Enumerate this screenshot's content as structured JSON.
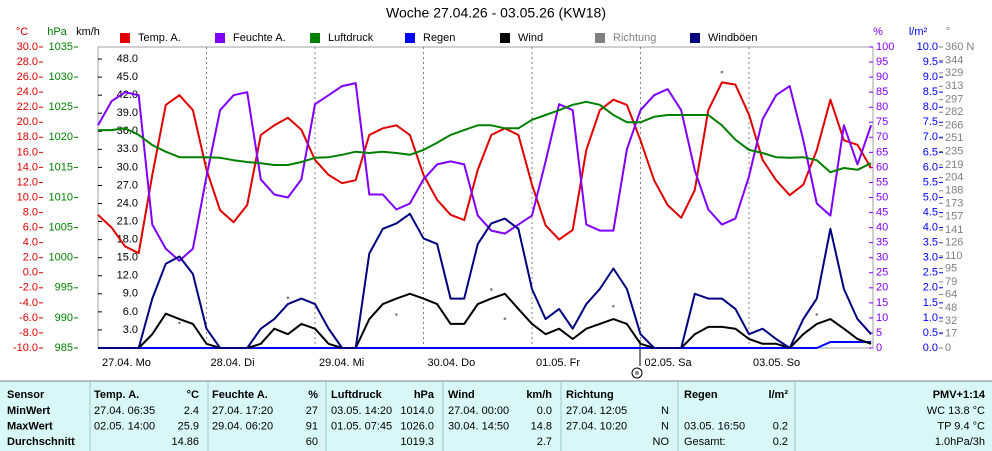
{
  "chart_data": {
    "type": "line",
    "title": "Woche 27.04.26 - 03.05.26 (KW18)",
    "categories": [
      "27.04. Mo",
      null,
      null,
      null,
      null,
      null,
      null,
      null,
      "28.04. Di",
      null,
      null,
      null,
      null,
      null,
      null,
      null,
      "29.04. Mi",
      null,
      null,
      null,
      null,
      null,
      null,
      null,
      "30.04. Do",
      null,
      null,
      null,
      null,
      null,
      null,
      null,
      "01.05. Fr",
      null,
      null,
      null,
      null,
      null,
      null,
      null,
      "02.05. Sa",
      null,
      null,
      null,
      null,
      null,
      null,
      null,
      "03.05. So",
      null,
      null,
      null,
      null,
      null,
      null,
      null,
      null,
      null
    ],
    "grid": true,
    "axes": [
      {
        "unit": "°C",
        "color": "#e00000",
        "lim": [
          -10,
          30
        ],
        "ticks": [
          {
            "value": -10,
            "label": "-10.0"
          },
          {
            "value": -8,
            "label": "-8.0"
          },
          {
            "value": -6,
            "label": "-6.0"
          },
          {
            "value": -4,
            "label": "-4.0"
          },
          {
            "value": -2,
            "label": "-2.0"
          },
          {
            "value": 0,
            "label": "0.0"
          },
          {
            "value": 2,
            "label": "2.0"
          },
          {
            "value": 4,
            "label": "4.0"
          },
          {
            "value": 6,
            "label": "6.0"
          },
          {
            "value": 8,
            "label": "8.0"
          },
          {
            "value": 10,
            "label": "10.0"
          },
          {
            "value": 12,
            "label": "12.0"
          },
          {
            "value": 14,
            "label": "14.0"
          },
          {
            "value": 16,
            "label": "16.0"
          },
          {
            "value": 18,
            "label": "18.0"
          },
          {
            "value": 20,
            "label": "20.0"
          },
          {
            "value": 22,
            "label": "22.0"
          },
          {
            "value": 24,
            "label": "24.0"
          },
          {
            "value": 26,
            "label": "26.0"
          },
          {
            "value": 28,
            "label": "28.0"
          },
          {
            "value": 30,
            "label": "30.0"
          }
        ]
      },
      {
        "unit": "hPa",
        "color": "#008000",
        "lim": [
          985,
          1035
        ],
        "ticks": [
          985,
          990,
          995,
          1000,
          1005,
          1010,
          1015,
          1020,
          1025,
          1030,
          1035
        ]
      },
      {
        "unit": "km/h",
        "color": "#000000",
        "lim": [
          0,
          50
        ],
        "ticks": [
          {
            "value": 3,
            "label": "3.0"
          },
          {
            "value": 6,
            "label": "6.0"
          },
          {
            "value": 9,
            "label": "9.0"
          },
          {
            "value": 12,
            "label": "12.0"
          },
          {
            "value": 15,
            "label": "15.0"
          },
          {
            "value": 18,
            "label": "18.0"
          },
          {
            "value": 21,
            "label": "21.0"
          },
          {
            "value": 24,
            "label": "24.0"
          },
          {
            "value": 27,
            "label": "27.0"
          },
          {
            "value": 30,
            "label": "30.0"
          },
          {
            "value": 33,
            "label": "33.0"
          },
          {
            "value": 36,
            "label": "36.0"
          },
          {
            "value": 39,
            "label": "39.0"
          },
          {
            "value": 42,
            "label": "42.0"
          },
          {
            "value": 45,
            "label": "45.0"
          },
          {
            "value": 48,
            "label": "48.0"
          }
        ]
      },
      {
        "unit": "%",
        "color": "#8000ff",
        "lim": [
          0,
          100
        ],
        "ticks": [
          0,
          5,
          10,
          15,
          20,
          25,
          30,
          35,
          40,
          45,
          50,
          55,
          60,
          65,
          70,
          75,
          80,
          85,
          90,
          95,
          100
        ]
      },
      {
        "unit": "l/m²",
        "color": "#0000ff",
        "lim": [
          0,
          10
        ],
        "ticks": [
          {
            "value": 0,
            "label": "0.0"
          },
          {
            "value": 0.5,
            "label": "0.5"
          },
          {
            "value": 1,
            "label": "1.0"
          },
          {
            "value": 1.5,
            "label": "1.5"
          },
          {
            "value": 2,
            "label": "2.0"
          },
          {
            "value": 2.5,
            "label": "2.5"
          },
          {
            "value": 3,
            "label": "3.0"
          },
          {
            "value": 3.5,
            "label": "3.5"
          },
          {
            "value": 4,
            "label": "4.0"
          },
          {
            "value": 4.5,
            "label": "4.5"
          },
          {
            "value": 5,
            "label": "5.0"
          },
          {
            "value": 5.5,
            "label": "5.5"
          },
          {
            "value": 6,
            "label": "6.0"
          },
          {
            "value": 6.5,
            "label": "6.5"
          },
          {
            "value": 7,
            "label": "7.0"
          },
          {
            "value": 7.5,
            "label": "7.5"
          },
          {
            "value": 8,
            "label": "8.0"
          },
          {
            "value": 8.5,
            "label": "8.5"
          },
          {
            "value": 9,
            "label": "9.0"
          },
          {
            "value": 9.5,
            "label": "9.5"
          },
          {
            "value": 10,
            "label": "10.0"
          }
        ]
      },
      {
        "unit": "°",
        "color": "#808080",
        "lim": [
          0,
          360
        ],
        "ticks": [
          0,
          17,
          32,
          48,
          64,
          79,
          95,
          110,
          126,
          141,
          157,
          173,
          188,
          204,
          219,
          235,
          251,
          266,
          282,
          297,
          313,
          329,
          344,
          {
            "value": 360,
            "label": "360 N"
          }
        ]
      }
    ],
    "series": [
      {
        "name": "Temp. A.",
        "color": "#e00000",
        "axis": 0,
        "values": [
          7.7,
          6.0,
          3.5,
          2.6,
          13.0,
          22.3,
          23.6,
          21.6,
          13.7,
          8.3,
          6.7,
          9.0,
          18.3,
          19.6,
          20.6,
          19.0,
          15.0,
          13.0,
          11.9,
          12.3,
          18.3,
          19.2,
          19.6,
          18.3,
          13.0,
          9.7,
          7.7,
          7.0,
          13.7,
          18.3,
          19.2,
          18.3,
          11.7,
          6.3,
          4.4,
          5.7,
          16.3,
          21.6,
          23.0,
          22.3,
          17.6,
          12.3,
          9.0,
          7.3,
          11.0,
          21.6,
          25.3,
          25.0,
          21.0,
          15.0,
          12.3,
          10.3,
          11.7,
          16.3,
          23.0,
          17.6,
          17.0,
          13.9
        ]
      },
      {
        "name": "Feuchte A.",
        "color": "#8000ff",
        "axis": 3,
        "values": [
          74,
          82,
          85,
          84,
          41,
          33,
          29,
          33,
          57,
          79,
          84,
          85,
          56,
          51,
          50,
          56,
          81,
          84,
          87,
          88,
          51,
          51,
          46,
          48,
          56,
          61,
          62,
          61,
          44,
          39,
          38,
          41,
          44,
          62,
          81,
          79,
          41,
          39,
          39,
          66,
          79,
          84,
          86,
          79,
          59,
          46,
          41,
          43,
          57,
          76,
          84,
          87,
          69,
          48,
          44,
          74,
          61,
          74
        ]
      },
      {
        "name": "Luftdruck",
        "color": "#008000",
        "axis": 1,
        "values": [
          1021.2,
          1021.2,
          1021.5,
          1020.4,
          1018.7,
          1017.6,
          1016.7,
          1016.7,
          1016.7,
          1016.6,
          1016.2,
          1015.9,
          1015.7,
          1015.4,
          1015.4,
          1015.9,
          1016.6,
          1016.7,
          1017.1,
          1017.6,
          1017.4,
          1017.6,
          1017.4,
          1017.1,
          1017.9,
          1019.1,
          1020.4,
          1021.2,
          1022.0,
          1022.0,
          1021.5,
          1021.5,
          1022.9,
          1023.7,
          1024.5,
          1025.4,
          1025.9,
          1025.4,
          1023.7,
          1022.5,
          1022.5,
          1023.4,
          1023.7,
          1023.7,
          1023.7,
          1023.7,
          1022.0,
          1019.6,
          1017.9,
          1017.4,
          1016.7,
          1016.6,
          1016.7,
          1016.2,
          1014.2,
          1014.9,
          1014.6,
          1015.7
        ]
      },
      {
        "name": "Regen",
        "color": "#0000ff",
        "axis": 4,
        "values": [
          0,
          0,
          0,
          0,
          0,
          0,
          0,
          0,
          0,
          0,
          0,
          0,
          0,
          0,
          0,
          0,
          0,
          0,
          0,
          0,
          0,
          0,
          0,
          0,
          0,
          0,
          0,
          0,
          0,
          0,
          0,
          0,
          0,
          0,
          0,
          0,
          0,
          0,
          0,
          0,
          0,
          0,
          0,
          0,
          0,
          0,
          0,
          0,
          0,
          0,
          0,
          0,
          0,
          0,
          0.2,
          0.2,
          0.2,
          0.2
        ]
      },
      {
        "name": "Wind",
        "color": "#000000",
        "axis": 2,
        "values": [
          0,
          0,
          0,
          0,
          2.3,
          5.7,
          4.8,
          4.0,
          0.7,
          0,
          0,
          0,
          0.7,
          3.2,
          2.3,
          4.0,
          3.2,
          0.7,
          0,
          0,
          4.8,
          7.3,
          8.2,
          9.0,
          8.2,
          7.3,
          4.0,
          4.0,
          7.3,
          8.2,
          9.0,
          6.5,
          4.0,
          2.3,
          3.2,
          1.5,
          3.2,
          4.0,
          4.8,
          4.0,
          0.7,
          0,
          0,
          0,
          2.3,
          3.5,
          3.5,
          3.2,
          1.5,
          0.7,
          0.7,
          0,
          2.3,
          4.0,
          4.8,
          3.2,
          1.5,
          0.7
        ]
      },
      {
        "name": "Richtung",
        "color": "#808080",
        "axis": 5,
        "mode": "dots",
        "values": [
          null,
          null,
          null,
          null,
          null,
          null,
          30,
          null,
          null,
          null,
          null,
          null,
          null,
          null,
          60,
          null,
          null,
          null,
          null,
          null,
          null,
          null,
          40,
          null,
          null,
          null,
          null,
          null,
          null,
          70,
          35,
          null,
          null,
          null,
          null,
          null,
          null,
          null,
          50,
          null,
          null,
          null,
          null,
          null,
          null,
          null,
          330,
          null,
          null,
          null,
          null,
          null,
          null,
          40,
          null,
          null,
          null,
          null
        ]
      },
      {
        "name": "Windböen",
        "color": "#000080",
        "axis": 2,
        "values": [
          0,
          0,
          0,
          0,
          8.2,
          14.0,
          15.2,
          12.3,
          3.2,
          0,
          0,
          0,
          3.2,
          4.8,
          7.3,
          8.2,
          7.3,
          3.2,
          0,
          0,
          15.7,
          19.8,
          20.7,
          22.3,
          18.2,
          17.3,
          8.2,
          8.2,
          17.3,
          20.7,
          21.5,
          19.8,
          9.8,
          4.8,
          6.5,
          3.2,
          7.3,
          9.8,
          13.2,
          9.8,
          2.3,
          0,
          0,
          0,
          9.0,
          8.2,
          8.2,
          6.5,
          2.3,
          3.2,
          1.5,
          0,
          4.8,
          8.2,
          19.8,
          9.8,
          4.8,
          2.3
        ]
      }
    ]
  },
  "table": {
    "header": [
      "Sensor",
      "Temp. A.",
      "°C",
      "Feuchte A.",
      "%",
      "Luftdruck",
      "hPa",
      "Wind",
      "km/h",
      "Richtung",
      null,
      "Regen",
      "l/m²",
      "PMV+1:14"
    ],
    "rows": [
      [
        "MinWert",
        "27.04. 06:35",
        "2.4",
        "27.04. 17:20",
        "27",
        "03.05. 14:20",
        "1014.0",
        "27.04. 00:00",
        "0.0",
        "27.04. 12:05",
        "N",
        null,
        null,
        "WC 13.8 °C"
      ],
      [
        "MaxWert",
        "02.05. 14:00",
        "25.9",
        "29.04. 06:20",
        "91",
        "01.05. 07:45",
        "1026.0",
        "30.04. 14:50",
        "14.8",
        "27.04. 10:20",
        "N",
        "03.05. 16:50",
        "0.2",
        "TP 9.4 °C"
      ],
      [
        "Durchschnitt",
        null,
        "14.86",
        null,
        "60",
        null,
        "1019.3",
        null,
        "2.7",
        null,
        "NO",
        "Gesamt:",
        "0.2",
        "1.0hPa/3h"
      ]
    ]
  }
}
